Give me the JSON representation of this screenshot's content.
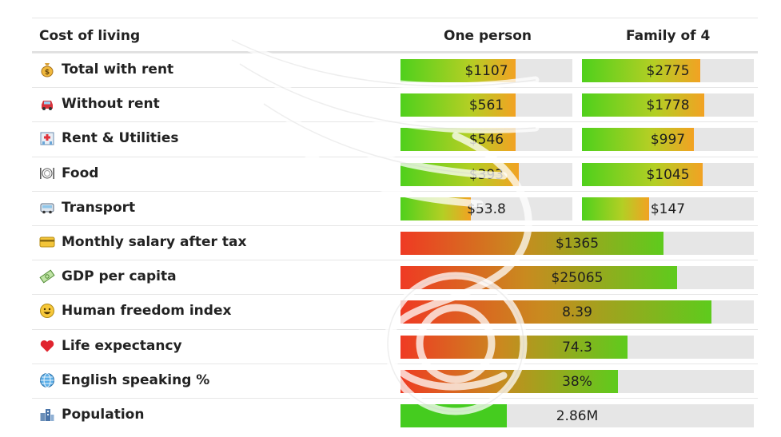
{
  "header": {
    "label": "Cost of living",
    "col1": "One person",
    "col2": "Family of 4"
  },
  "rows": [
    {
      "label": "Total with rent",
      "icon": "money-bag-icon"
    },
    {
      "label": "Without rent",
      "icon": "car-icon"
    },
    {
      "label": "Rent & Utilities",
      "icon": "hospital-building-icon"
    },
    {
      "label": "Food",
      "icon": "plate-cutlery-icon"
    },
    {
      "label": "Transport",
      "icon": "bus-icon"
    },
    {
      "label": "Monthly salary after tax",
      "icon": "credit-card-icon"
    },
    {
      "label": "GDP per capita",
      "icon": "money-bill-icon"
    },
    {
      "label": "Human freedom index",
      "icon": "smiley-icon"
    },
    {
      "label": "Life expectancy",
      "icon": "heart-icon"
    },
    {
      "label": "English speaking %",
      "icon": "globe-icon"
    },
    {
      "label": "Population",
      "icon": "buildings-icon"
    }
  ],
  "chart_data": {
    "type": "bar",
    "title": "Cost of living",
    "cost_rows": {
      "categories": [
        "Total with rent",
        "Without rent",
        "Rent & Utilities",
        "Food",
        "Transport"
      ],
      "series": [
        {
          "name": "One person",
          "values": [
            1107,
            561,
            546,
            393,
            53.8
          ],
          "labels": [
            "$1107",
            "$561",
            "$546",
            "$393",
            "$53.8"
          ],
          "fill_fraction": [
            0.67,
            0.67,
            0.67,
            0.69,
            0.41
          ]
        },
        {
          "name": "Family of 4",
          "values": [
            2775,
            1778,
            997,
            1045,
            147
          ],
          "labels": [
            "$2775",
            "$1778",
            "$997",
            "$1045",
            "$147"
          ],
          "fill_fraction": [
            0.69,
            0.71,
            0.65,
            0.7,
            0.39
          ]
        }
      ]
    },
    "indicator_rows": [
      {
        "category": "Monthly salary after tax",
        "value": 1365,
        "label": "$1365",
        "fill_fraction": 0.745,
        "style": "score"
      },
      {
        "category": "GDP per capita",
        "value": 25065,
        "label": "$25065",
        "fill_fraction": 0.783,
        "style": "score"
      },
      {
        "category": "Human freedom index",
        "value": 8.39,
        "label": "8.39",
        "fill_fraction": 0.879,
        "style": "score"
      },
      {
        "category": "Life expectancy",
        "value": 74.3,
        "label": "74.3",
        "fill_fraction": 0.642,
        "style": "score"
      },
      {
        "category": "English speaking %",
        "value": 38,
        "label": "38%",
        "fill_fraction": 0.615,
        "style": "score"
      },
      {
        "category": "Population",
        "value": 2.86,
        "label": "2.86M",
        "fill_fraction": 0.302,
        "style": "plain"
      }
    ]
  }
}
